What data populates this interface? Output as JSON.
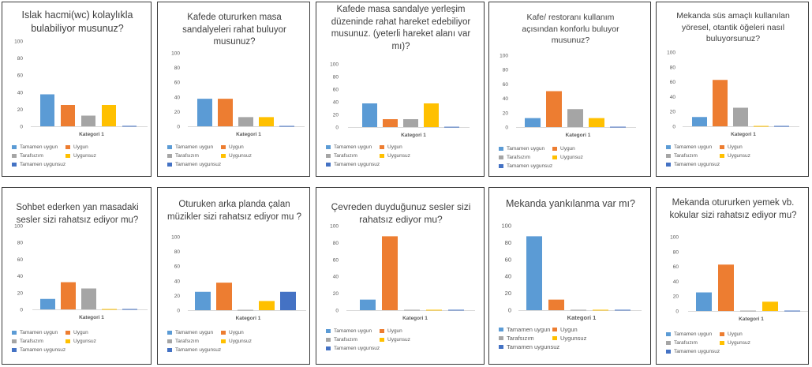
{
  "colors": {
    "Tamamen uygun": "#5b9bd5",
    "Uygun": "#ed7d31",
    "Tarafsızım": "#a5a5a5",
    "Uygunsuz": "#ffc000",
    "Tamamen uygunsuz": "#4472c4"
  },
  "series_names": [
    "Tamamen uygun",
    "Uygun",
    "Tarafsızım",
    "Uygunsuz",
    "Tamamen uygunsuz"
  ],
  "chart_data": [
    {
      "type": "bar",
      "title": "Islak hacmi(wc) kolaylıkla bulabiliyor musunuz?",
      "xlabel": "Kategori 1",
      "categories": [
        "Kategori 1"
      ],
      "ylim": [
        0,
        100
      ],
      "yticks": [
        "0",
        "20",
        "40",
        "60",
        "80",
        "100"
      ],
      "grid": false,
      "legend": "bottom",
      "series": [
        {
          "name": "Tamamen uygun",
          "values": [
            37.5
          ]
        },
        {
          "name": "Uygun",
          "values": [
            25
          ]
        },
        {
          "name": "Tarafsızım",
          "values": [
            12.5
          ]
        },
        {
          "name": "Uygunsuz",
          "values": [
            25
          ]
        },
        {
          "name": "Tamamen uygunsuz",
          "values": [
            0.5
          ]
        }
      ]
    },
    {
      "type": "bar",
      "title": "Kafede otururken masa sandalyeleri rahat buluyor musunuz?",
      "xlabel": "Kategori 1",
      "categories": [
        "Kategori 1"
      ],
      "ylim": [
        0,
        100
      ],
      "yticks": [
        "0",
        "20",
        "40",
        "60",
        "80",
        "100"
      ],
      "grid": false,
      "legend": "bottom",
      "series": [
        {
          "name": "Tamamen uygun",
          "values": [
            37.5
          ]
        },
        {
          "name": "Uygun",
          "values": [
            37.5
          ]
        },
        {
          "name": "Tarafsızım",
          "values": [
            12.5
          ]
        },
        {
          "name": "Uygunsuz",
          "values": [
            12.5
          ]
        },
        {
          "name": "Tamamen uygunsuz",
          "values": [
            0.5
          ]
        }
      ]
    },
    {
      "type": "bar",
      "title": "Kafede masa sandalye yerleşim düzeninde rahat hareket edebiliyor musunuz. (yeterli hareket alanı var mı)?",
      "xlabel": "Kategori 1",
      "categories": [
        "Kategori 1"
      ],
      "ylim": [
        0,
        100
      ],
      "yticks": [
        "0",
        "20",
        "40",
        "60",
        "80",
        "100"
      ],
      "grid": false,
      "legend": "bottom",
      "series": [
        {
          "name": "Tamamen uygun",
          "values": [
            37.5
          ]
        },
        {
          "name": "Uygun",
          "values": [
            12.5
          ]
        },
        {
          "name": "Tarafsızım",
          "values": [
            12.5
          ]
        },
        {
          "name": "Uygunsuz",
          "values": [
            37.5
          ]
        },
        {
          "name": "Tamamen uygunsuz",
          "values": [
            0.5
          ]
        }
      ]
    },
    {
      "type": "bar",
      "title": "Kafe/ restoranı kullanım açısından konforlu buluyor musunuz?",
      "xlabel": "Kategori 1",
      "categories": [
        "Kategori 1"
      ],
      "ylim": [
        0,
        100
      ],
      "yticks": [
        "0",
        "20",
        "40",
        "60",
        "80",
        "100"
      ],
      "grid": false,
      "legend": "bottom",
      "series": [
        {
          "name": "Tamamen uygun",
          "values": [
            12.5
          ]
        },
        {
          "name": "Uygun",
          "values": [
            50
          ]
        },
        {
          "name": "Tarafsızım",
          "values": [
            25
          ]
        },
        {
          "name": "Uygunsuz",
          "values": [
            12.5
          ]
        },
        {
          "name": "Tamamen uygunsuz",
          "values": [
            0.5
          ]
        }
      ]
    },
    {
      "type": "bar",
      "title": "Mekanda süs amaçlı kullanılan yöresel, otantik öğeleri nasıl buluyorsunuz?",
      "xlabel": "Kategori 1",
      "categories": [
        "Kategori 1"
      ],
      "ylim": [
        0,
        100
      ],
      "yticks": [
        "0",
        "20",
        "40",
        "60",
        "80",
        "100"
      ],
      "grid": false,
      "legend": "bottom",
      "series": [
        {
          "name": "Tamamen uygun",
          "values": [
            12.5
          ]
        },
        {
          "name": "Uygun",
          "values": [
            62.5
          ]
        },
        {
          "name": "Tarafsızım",
          "values": [
            25
          ]
        },
        {
          "name": "Uygunsuz",
          "values": [
            0.5
          ]
        },
        {
          "name": "Tamamen uygunsuz",
          "values": [
            0.5
          ]
        }
      ]
    },
    {
      "type": "bar",
      "title": "Sohbet ederken yan masadaki sesler sizi rahatsız ediyor mu?",
      "xlabel": "Kategori 1",
      "categories": [
        "Kategori 1"
      ],
      "ylim": [
        0,
        100
      ],
      "yticks": [
        "0",
        "20",
        "40",
        "60",
        "80",
        "100"
      ],
      "grid": false,
      "legend": "bottom",
      "series": [
        {
          "name": "Tamamen uygun",
          "values": [
            12.5
          ]
        },
        {
          "name": "Uygun",
          "values": [
            32.5
          ]
        },
        {
          "name": "Tarafsızım",
          "values": [
            25
          ]
        },
        {
          "name": "Uygunsuz",
          "values": [
            0.5
          ]
        },
        {
          "name": "Tamamen uygunsuz",
          "values": [
            0.5
          ]
        }
      ]
    },
    {
      "type": "bar",
      "title": "Oturuken arka planda çalan müzikler sizi rahatsız ediyor mu ?",
      "xlabel": "Kategori 1",
      "categories": [
        "Kategori 1"
      ],
      "ylim": [
        0,
        100
      ],
      "yticks": [
        "0",
        "20",
        "40",
        "60",
        "80",
        "100"
      ],
      "grid": false,
      "legend": "bottom",
      "series": [
        {
          "name": "Tamamen uygun",
          "values": [
            25
          ]
        },
        {
          "name": "Uygun",
          "values": [
            37.5
          ]
        },
        {
          "name": "Tarafsızım",
          "values": [
            0.5
          ]
        },
        {
          "name": "Uygunsuz",
          "values": [
            12.5
          ]
        },
        {
          "name": "Tamamen uygunsuz",
          "values": [
            25
          ]
        }
      ]
    },
    {
      "type": "bar",
      "title": "Çevreden duyduğunuz sesler sizi rahatsız ediyor mu?",
      "xlabel": "Kategori 1",
      "categories": [
        "Kategori 1"
      ],
      "ylim": [
        0,
        100
      ],
      "yticks": [
        "0",
        "20",
        "40",
        "60",
        "80",
        "100"
      ],
      "grid": false,
      "legend": "bottom",
      "series": [
        {
          "name": "Tamamen uygun",
          "values": [
            12.5
          ]
        },
        {
          "name": "Uygun",
          "values": [
            87.5
          ]
        },
        {
          "name": "Tarafsızım",
          "values": [
            0.5
          ]
        },
        {
          "name": "Uygunsuz",
          "values": [
            0.5
          ]
        },
        {
          "name": "Tamamen uygunsuz",
          "values": [
            0.5
          ]
        }
      ]
    },
    {
      "type": "bar",
      "title": "Mekanda yankılanma var mı?",
      "xlabel": "Kategori 1",
      "categories": [
        "Kategori 1"
      ],
      "ylim": [
        0,
        100
      ],
      "yticks": [
        "0",
        "20",
        "40",
        "60",
        "80",
        "100"
      ],
      "grid": false,
      "legend": "bottom",
      "series": [
        {
          "name": "Tamamen uygun",
          "values": [
            87.5
          ]
        },
        {
          "name": "Uygun",
          "values": [
            12.5
          ]
        },
        {
          "name": "Tarafsızım",
          "values": [
            0.5
          ]
        },
        {
          "name": "Uygunsuz",
          "values": [
            0.5
          ]
        },
        {
          "name": "Tamamen uygunsuz",
          "values": [
            0.5
          ]
        }
      ]
    },
    {
      "type": "bar",
      "title": "Mekanda otururken yemek vb. kokular sizi rahatsız ediyor mu?",
      "xlabel": "Kategori 1",
      "categories": [
        "Kategori 1"
      ],
      "ylim": [
        0,
        100
      ],
      "yticks": [
        "0",
        "20",
        "40",
        "60",
        "80",
        "100"
      ],
      "grid": false,
      "legend": "bottom",
      "series": [
        {
          "name": "Tamamen uygun",
          "values": [
            25
          ]
        },
        {
          "name": "Uygun",
          "values": [
            62.5
          ]
        },
        {
          "name": "Tarafsızım",
          "values": [
            0.5
          ]
        },
        {
          "name": "Uygunsuz",
          "values": [
            12.5
          ]
        },
        {
          "name": "Tamamen uygunsuz",
          "values": [
            0.5
          ]
        }
      ]
    }
  ]
}
